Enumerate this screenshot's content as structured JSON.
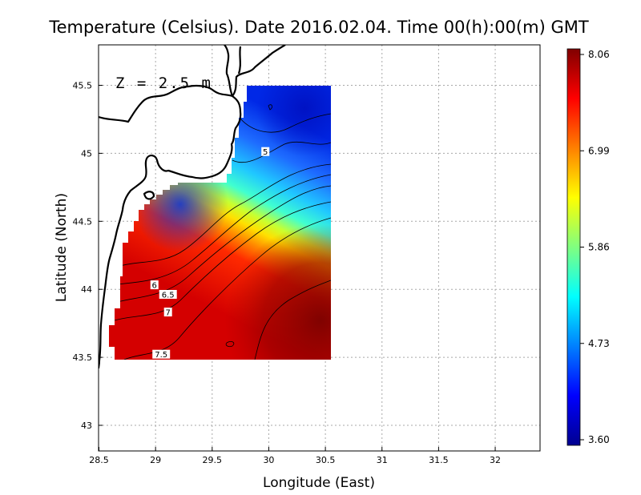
{
  "chart_data": {
    "type": "heatmap",
    "title": "Temperature (Celsius). Date 2016.02.04. Time 00(h):00(m)  GMT",
    "annotation": "Z = 2.5 m",
    "xlabel": "Longitude (East)",
    "ylabel": "Latitude (North)",
    "xlim": [
      28.5,
      32.4
    ],
    "ylim": [
      42.8,
      45.8
    ],
    "x_ticks": [
      "28.5",
      "29",
      "29.5",
      "30",
      "30.5",
      "31",
      "31.5",
      "32"
    ],
    "y_ticks": [
      "43",
      "43.5",
      "44",
      "44.5",
      "45",
      "45.5"
    ],
    "grid": true,
    "colorbar": {
      "min": 3.6,
      "max": 8.06,
      "ticks": [
        "8.06",
        "6.99",
        "5.86",
        "4.73",
        "3.60"
      ],
      "colormap": "jet"
    },
    "contour_labels": [
      {
        "text": "5",
        "lon": 29.97,
        "lat": 45.01
      },
      {
        "text": "6",
        "lon": 28.99,
        "lat": 44.03
      },
      {
        "text": "6.5",
        "lon": 29.11,
        "lat": 43.96
      },
      {
        "text": "7",
        "lon": 29.11,
        "lat": 43.83
      },
      {
        "text": "7.5",
        "lon": 29.05,
        "lat": 43.52
      }
    ],
    "data_extent": {
      "lon": [
        28.63,
        30.55
      ],
      "lat": [
        43.48,
        45.5
      ]
    }
  }
}
